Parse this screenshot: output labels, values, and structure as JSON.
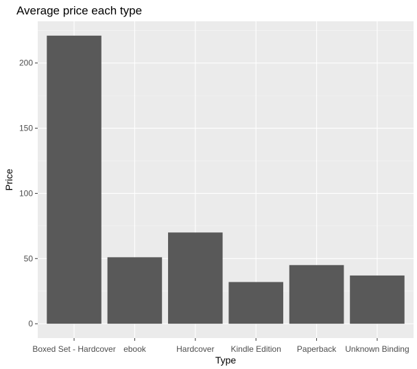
{
  "chart_data": {
    "type": "bar",
    "title": "Average price each type",
    "xlabel": "Type",
    "ylabel": "Price",
    "categories": [
      "Boxed Set - Hardcover",
      "ebook",
      "Hardcover",
      "Kindle Edition",
      "Paperback",
      "Unknown Binding"
    ],
    "values": [
      221,
      51,
      70,
      32,
      45,
      37
    ],
    "ylim": [
      -11,
      232
    ],
    "yticks": [
      0,
      50,
      100,
      150,
      200
    ],
    "ytick_labels": [
      "0",
      "50",
      "100",
      "150",
      "200"
    ],
    "grid": true,
    "legend": "none",
    "colors": {
      "bar": "#595959",
      "panel": "#ebebeb",
      "grid_major": "#ffffff",
      "grid_minor": "#f5f5f5",
      "tick": "#333333"
    }
  }
}
